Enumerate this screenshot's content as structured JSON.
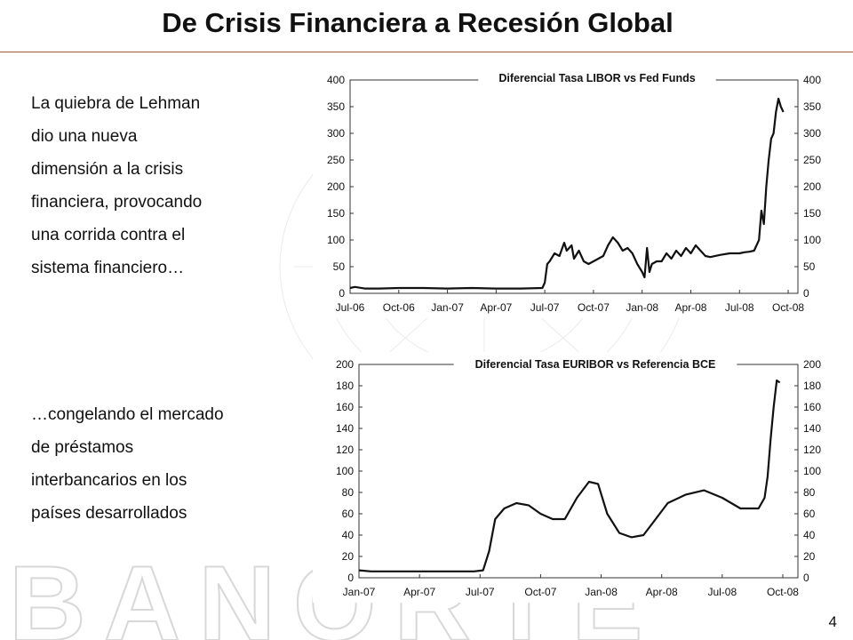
{
  "slide": {
    "title": "De Crisis Financiera a Recesión Global",
    "page_number": "4",
    "watermark_text": "BANORTE",
    "colors": {
      "title_rule": "#9a5a3c",
      "line": "#111111",
      "watermark": "#e6e6e6"
    }
  },
  "text_blocks": {
    "block1": [
      "La quiebra de Lehman",
      "dio una nueva",
      "dimensión a la crisis",
      "financiera, provocando",
      "una corrida contra el",
      "sistema financiero…"
    ],
    "block2": [
      "…congelando el mercado",
      "de préstamos",
      "interbancarios en los",
      "países desarrollados"
    ]
  },
  "chart_data": [
    {
      "type": "line",
      "title": "Diferencial Tasa LIBOR vs Fed Funds",
      "categories": [
        "Jul-06",
        "Oct-06",
        "Jan-07",
        "Apr-07",
        "Jul-07",
        "Oct-07",
        "Jan-08",
        "Apr-08",
        "Jul-08",
        "Oct-08"
      ],
      "yticks": [
        0,
        50,
        100,
        150,
        200,
        250,
        300,
        350,
        400
      ],
      "ylim": [
        0,
        400
      ],
      "xlim": [
        0,
        9.2
      ],
      "grid": false,
      "series": [
        {
          "x": [
            0,
            0.1,
            0.3,
            0.6,
            1,
            1.5,
            2,
            2.5,
            3,
            3.5,
            3.95,
            4.0,
            4.05,
            4.1,
            4.2,
            4.3,
            4.4,
            4.45,
            4.55,
            4.6,
            4.7,
            4.8,
            4.9,
            5.0,
            5.1,
            5.2,
            5.3,
            5.4,
            5.5,
            5.6,
            5.7,
            5.8,
            5.9,
            6.0,
            6.05,
            6.1,
            6.15,
            6.2,
            6.3,
            6.4,
            6.5,
            6.6,
            6.7,
            6.8,
            6.9,
            7.0,
            7.1,
            7.2,
            7.3,
            7.4,
            7.6,
            7.8,
            8.0,
            8.1,
            8.2,
            8.3,
            8.4,
            8.45,
            8.5,
            8.55,
            8.6,
            8.65,
            8.7,
            8.75,
            8.8,
            8.85,
            8.9
          ],
          "y": [
            10,
            12,
            9,
            9,
            10,
            10,
            9,
            10,
            9,
            9,
            10,
            20,
            55,
            60,
            75,
            70,
            95,
            80,
            90,
            65,
            80,
            60,
            55,
            60,
            65,
            70,
            90,
            105,
            95,
            80,
            85,
            75,
            55,
            40,
            30,
            85,
            40,
            55,
            60,
            60,
            75,
            65,
            80,
            70,
            85,
            75,
            90,
            80,
            70,
            68,
            72,
            75,
            75,
            77,
            78,
            80,
            100,
            155,
            130,
            200,
            250,
            290,
            300,
            340,
            365,
            350,
            340
          ]
        }
      ]
    },
    {
      "type": "line",
      "title": "Diferencial Tasa EURIBOR vs Referencia BCE",
      "categories": [
        "Jan-07",
        "Apr-07",
        "Jul-07",
        "Oct-07",
        "Jan-08",
        "Apr-08",
        "Jul-08",
        "Oct-08"
      ],
      "yticks": [
        0,
        20,
        40,
        60,
        80,
        100,
        120,
        140,
        160,
        180,
        200
      ],
      "ylim": [
        0,
        200
      ],
      "xlim": [
        0,
        7.25
      ],
      "grid": false,
      "series": [
        {
          "x": [
            0,
            0.2,
            0.5,
            1,
            1.5,
            1.9,
            2.05,
            2.15,
            2.25,
            2.4,
            2.6,
            2.8,
            3.0,
            3.2,
            3.4,
            3.6,
            3.8,
            3.95,
            4.1,
            4.3,
            4.5,
            4.7,
            4.9,
            5.1,
            5.4,
            5.7,
            6.0,
            6.3,
            6.5,
            6.6,
            6.7,
            6.75,
            6.8,
            6.85,
            6.9,
            6.95
          ],
          "y": [
            7,
            6,
            6,
            6,
            6,
            6,
            7,
            25,
            55,
            65,
            70,
            68,
            60,
            55,
            55,
            75,
            90,
            88,
            60,
            42,
            38,
            40,
            55,
            70,
            78,
            82,
            75,
            65,
            65,
            65,
            75,
            95,
            130,
            160,
            185,
            183
          ]
        }
      ]
    }
  ]
}
